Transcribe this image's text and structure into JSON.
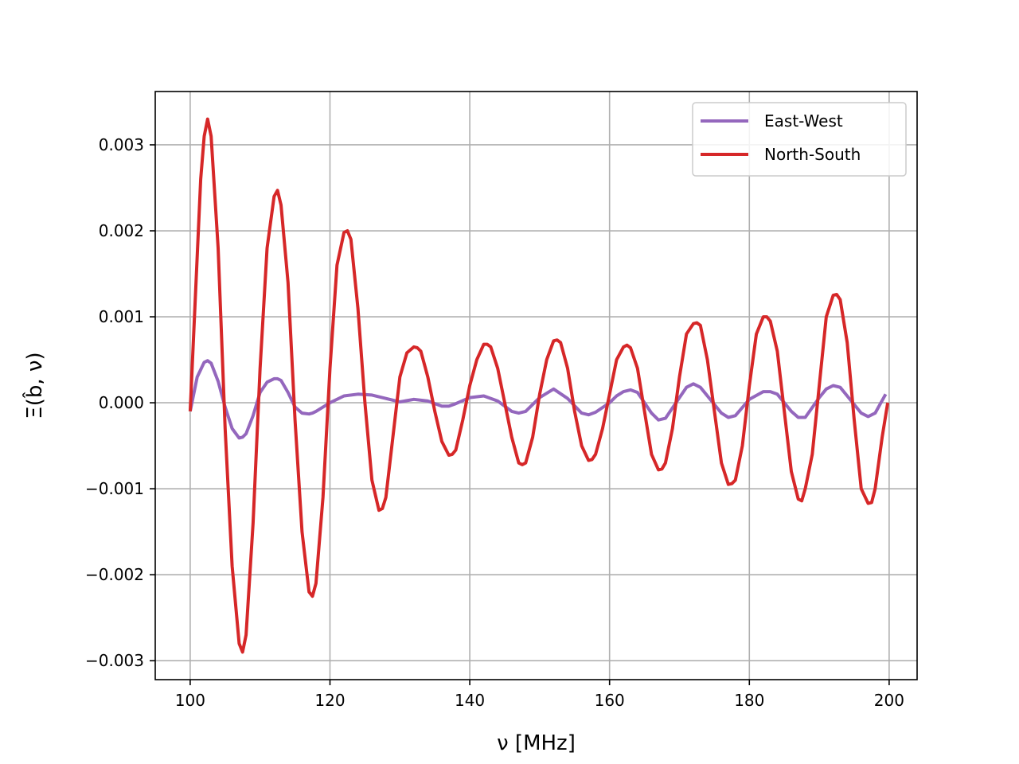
{
  "chart_data": {
    "type": "line",
    "title": "",
    "xlabel": "ν [MHz]",
    "ylabel": "Ξ(b̂, ν)",
    "xlim": [
      95,
      204
    ],
    "ylim": [
      -0.00322,
      0.00362
    ],
    "xticks": [
      100,
      120,
      140,
      160,
      180,
      200
    ],
    "xtick_labels": [
      "100",
      "120",
      "140",
      "160",
      "180",
      "200"
    ],
    "yticks": [
      -0.003,
      -0.002,
      -0.001,
      0.0,
      0.001,
      0.002,
      0.003
    ],
    "ytick_labels": [
      "−0.003",
      "−0.002",
      "−0.001",
      "0.000",
      "0.001",
      "0.002",
      "0.003"
    ],
    "grid": true,
    "legend": "top-right",
    "series": [
      {
        "name": "East-West",
        "color": "#9467bd",
        "x": [
          100,
          101,
          102,
          102.5,
          103,
          104,
          105,
          106,
          107,
          107.5,
          108,
          109,
          110,
          111,
          112,
          112.5,
          113,
          114,
          115,
          116,
          117,
          117.5,
          118,
          120,
          122,
          124,
          126,
          128,
          130,
          132,
          134,
          136,
          137,
          138,
          140,
          142,
          144,
          146,
          147,
          148,
          150,
          152,
          154,
          156,
          157,
          158,
          160,
          161,
          162,
          163,
          164,
          166,
          167,
          168,
          170,
          171,
          172,
          173,
          174,
          176,
          177,
          178,
          180,
          182,
          183,
          184,
          186,
          187,
          188,
          190,
          191,
          192,
          193,
          194,
          196,
          197,
          198,
          199.5
        ],
        "y": [
          -0.0001,
          0.0003,
          0.00047,
          0.00049,
          0.00046,
          0.00025,
          -5e-05,
          -0.0003,
          -0.00041,
          -0.0004,
          -0.00036,
          -0.00015,
          0.00012,
          0.00024,
          0.00028,
          0.00028,
          0.00026,
          0.00012,
          -5e-05,
          -0.00012,
          -0.00013,
          -0.00012,
          -0.0001,
          0.0,
          8e-05,
          0.0001,
          9e-05,
          5e-05,
          1e-05,
          4e-05,
          2e-05,
          -4e-05,
          -4e-05,
          -1e-05,
          6e-05,
          8e-05,
          2e-05,
          -0.0001,
          -0.00012,
          -0.0001,
          6e-05,
          0.00016,
          5e-05,
          -0.00012,
          -0.00014,
          -0.00011,
          0.0,
          8e-05,
          0.00013,
          0.00015,
          0.00012,
          -0.00012,
          -0.0002,
          -0.00018,
          6e-05,
          0.00018,
          0.00022,
          0.00018,
          8e-05,
          -0.00012,
          -0.00017,
          -0.00015,
          4e-05,
          0.00013,
          0.00013,
          0.0001,
          -0.0001,
          -0.00017,
          -0.00017,
          6e-05,
          0.00016,
          0.0002,
          0.00018,
          8e-05,
          -0.00012,
          -0.00016,
          -0.00012,
          0.0001
        ]
      },
      {
        "name": "North-South",
        "color": "#d62728",
        "x": [
          100,
          101,
          101.5,
          102,
          102.5,
          103,
          104,
          105,
          106,
          107,
          107.5,
          108,
          109,
          110,
          111,
          112,
          112.5,
          113,
          114,
          115,
          116,
          117,
          117.5,
          118,
          119,
          120,
          121,
          122,
          122.5,
          123,
          124,
          125,
          126,
          127,
          127.5,
          128,
          129,
          130,
          131,
          132,
          132.5,
          133,
          134,
          135,
          136,
          137,
          137.5,
          138,
          139,
          140,
          141,
          142,
          142.5,
          143,
          144,
          145,
          146,
          147,
          147.5,
          148,
          149,
          150,
          151,
          152,
          152.5,
          153,
          154,
          155,
          156,
          157,
          157.5,
          158,
          159,
          160,
          161,
          162,
          162.5,
          163,
          164,
          165,
          166,
          167,
          167.5,
          168,
          169,
          170,
          171,
          172,
          172.5,
          173,
          174,
          175,
          176,
          177,
          177.5,
          178,
          179,
          180,
          181,
          182,
          182.5,
          183,
          184,
          185,
          186,
          187,
          187.5,
          188,
          189,
          190,
          191,
          192,
          192.5,
          193,
          194,
          195,
          196,
          197,
          197.5,
          198,
          199,
          199.8
        ],
        "y": [
          -0.0001,
          0.0017,
          0.0026,
          0.0031,
          0.0033,
          0.0031,
          0.0018,
          -0.0003,
          -0.0019,
          -0.0028,
          -0.0029,
          -0.0027,
          -0.0014,
          0.0004,
          0.0018,
          0.0024,
          0.00247,
          0.0023,
          0.0014,
          -0.0002,
          -0.0015,
          -0.0022,
          -0.00225,
          -0.0021,
          -0.0011,
          0.0004,
          0.0016,
          0.00198,
          0.002,
          0.0019,
          0.0011,
          0.0,
          -0.0009,
          -0.00125,
          -0.00123,
          -0.0011,
          -0.0004,
          0.0003,
          0.00058,
          0.00065,
          0.00064,
          0.0006,
          0.0003,
          -0.0001,
          -0.00045,
          -0.00061,
          -0.0006,
          -0.00055,
          -0.0002,
          0.0002,
          0.0005,
          0.00068,
          0.00068,
          0.00065,
          0.0004,
          0.0,
          -0.0004,
          -0.0007,
          -0.00072,
          -0.0007,
          -0.0004,
          0.0001,
          0.0005,
          0.00072,
          0.00073,
          0.0007,
          0.0004,
          -0.0001,
          -0.0005,
          -0.00067,
          -0.00066,
          -0.0006,
          -0.0003,
          0.0001,
          0.0005,
          0.00065,
          0.00067,
          0.00064,
          0.0004,
          -0.0001,
          -0.0006,
          -0.00078,
          -0.00077,
          -0.0007,
          -0.0003,
          0.0003,
          0.0008,
          0.00092,
          0.00093,
          0.0009,
          0.0005,
          -0.0001,
          -0.0007,
          -0.00095,
          -0.00094,
          -0.0009,
          -0.0005,
          0.0002,
          0.0008,
          0.001,
          0.001,
          0.00095,
          0.0006,
          -0.0001,
          -0.0008,
          -0.00112,
          -0.00114,
          -0.001,
          -0.0006,
          0.0002,
          0.001,
          0.00125,
          0.00126,
          0.0012,
          0.0007,
          -0.0002,
          -0.001,
          -0.00117,
          -0.00116,
          -0.001,
          -0.0004,
          0.0
        ]
      }
    ]
  }
}
